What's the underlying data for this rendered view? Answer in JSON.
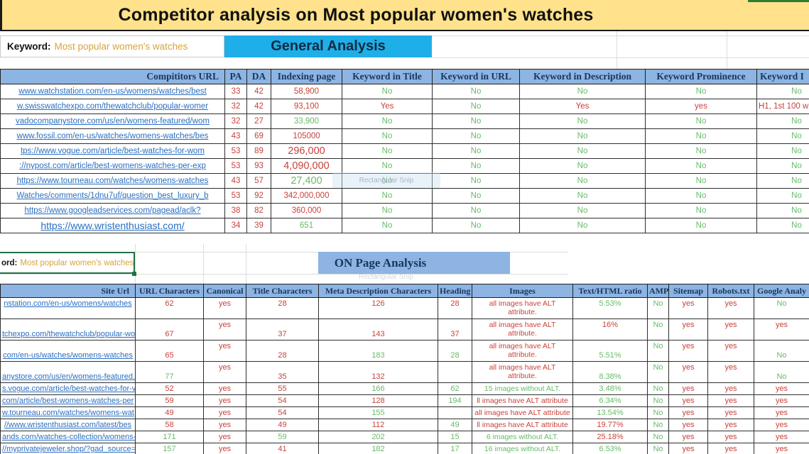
{
  "title": "Competitor analysis on Most popular women's watches",
  "keyword_row": {
    "label": "Keyword:",
    "value": "Most popular women's watches"
  },
  "keyword_row2": {
    "label": "ord:",
    "value": "Most popular women's watches"
  },
  "sections": {
    "general": "General Analysis",
    "onpage": "ON Page Analysis"
  },
  "watermark": "Rectangular Snip",
  "colors": {
    "title_bg": "#FFE28B",
    "header_bg": "#8DB4E2",
    "general_bg": "#1FAFE8",
    "red": "#c9423c",
    "green": "#67bb68",
    "link": "#2a6fc0",
    "selection_green": "#1F7244",
    "keyword_orange": "#d8a43c"
  },
  "general_table": {
    "headers": [
      "Compititors URL",
      "PA",
      "DA",
      "Indexing page",
      "Keyword in Title",
      "Keyword in URL",
      "Keyword in Description",
      "Keyword Prominence",
      "Keyword I"
    ],
    "rows": [
      [
        [
          "www.watchstation.com/en-us/womens/watches/best",
          "b"
        ],
        [
          "33",
          "r"
        ],
        [
          "42",
          "r"
        ],
        [
          "58,900",
          "r"
        ],
        [
          "No",
          "g"
        ],
        [
          "No",
          "g"
        ],
        [
          "No",
          "g"
        ],
        [
          "No",
          "g"
        ],
        [
          "No",
          "g"
        ]
      ],
      [
        [
          "w.swisswatchexpo.com/thewatchclub/popular-womer",
          "b"
        ],
        [
          "32",
          "r"
        ],
        [
          "42",
          "r"
        ],
        [
          "93,100",
          "r"
        ],
        [
          "Yes",
          "r"
        ],
        [
          "No",
          "g"
        ],
        [
          "Yes",
          "r"
        ],
        [
          "yes",
          "r"
        ],
        [
          "H1, 1st 100 w",
          "r"
        ]
      ],
      [
        [
          "vadocompanystore.com/us/en/womens-featured/wom",
          "b"
        ],
        [
          "32",
          "r"
        ],
        [
          "27",
          "r"
        ],
        [
          "33,900",
          "g"
        ],
        [
          "No",
          "g"
        ],
        [
          "No",
          "g"
        ],
        [
          "No",
          "g"
        ],
        [
          "No",
          "g"
        ],
        [
          "No",
          "g"
        ]
      ],
      [
        [
          "www.fossil.com/en-us/watches/womens-watches/bes",
          "b"
        ],
        [
          "43",
          "r"
        ],
        [
          "69",
          "r"
        ],
        [
          "105000",
          "r"
        ],
        [
          "No",
          "g"
        ],
        [
          "No",
          "g"
        ],
        [
          "No",
          "g"
        ],
        [
          "No",
          "g"
        ],
        [
          "No",
          "g"
        ]
      ],
      [
        [
          "tps://www.vogue.com/article/best-watches-for-wom",
          "b"
        ],
        [
          "53",
          "r"
        ],
        [
          "89",
          "r"
        ],
        [
          "296,000",
          "r"
        ],
        [
          "No",
          "g"
        ],
        [
          "No",
          "g"
        ],
        [
          "No",
          "g"
        ],
        [
          "No",
          "g"
        ],
        [
          "No",
          "g"
        ]
      ],
      [
        [
          "://nypost.com/article/best-womens-watches-per-exp",
          "b"
        ],
        [
          "53",
          "r"
        ],
        [
          "93",
          "r"
        ],
        [
          "4,090,000",
          "r"
        ],
        [
          "No",
          "g"
        ],
        [
          "No",
          "g"
        ],
        [
          "No",
          "g"
        ],
        [
          "No",
          "g"
        ],
        [
          "No",
          "g"
        ]
      ],
      [
        [
          "https://www.tourneau.com/watches/womens-watches",
          "b"
        ],
        [
          "43",
          "r"
        ],
        [
          "57",
          "r"
        ],
        [
          "27,400",
          "g"
        ],
        [
          "No",
          "g"
        ],
        [
          "No",
          "g"
        ],
        [
          "No",
          "g"
        ],
        [
          "No",
          "g"
        ],
        [
          "No",
          "g"
        ]
      ],
      [
        [
          "Watches/comments/1dnu7uf/question_best_luxury_b",
          "b"
        ],
        [
          "53",
          "r"
        ],
        [
          "92",
          "r"
        ],
        [
          "342,000,000",
          "r"
        ],
        [
          "No",
          "g"
        ],
        [
          "No",
          "g"
        ],
        [
          "No",
          "g"
        ],
        [
          "No",
          "g"
        ],
        [
          "No",
          "g"
        ]
      ],
      [
        [
          "https://www.googleadservices.com/pagead/aclk?",
          "b"
        ],
        [
          "38",
          "r"
        ],
        [
          "82",
          "r"
        ],
        [
          "360,000",
          "r"
        ],
        [
          "No",
          "g"
        ],
        [
          "No",
          "g"
        ],
        [
          "No",
          "g"
        ],
        [
          "No",
          "g"
        ],
        [
          "No",
          "g"
        ]
      ],
      [
        [
          "https://www.wristenthusiast.com/",
          "b"
        ],
        [
          "34",
          "r"
        ],
        [
          "39",
          "r"
        ],
        [
          "651",
          "g"
        ],
        [
          "No",
          "g"
        ],
        [
          "No",
          "g"
        ],
        [
          "No",
          "g"
        ],
        [
          "No",
          "g"
        ],
        [
          "No",
          "g"
        ]
      ]
    ]
  },
  "onpage_table": {
    "headers": [
      "Site Url",
      "URL Characters",
      "Canonical",
      "Title Characters",
      "Meta Description Characters",
      "Heading",
      "Images",
      "Text/HTML ratio",
      "AMP",
      "Sitemap",
      "Robots.txt",
      "Google Analy"
    ],
    "rows": [
      [
        [
          "nstation.com/en-us/womens/watches",
          "b"
        ],
        [
          "62",
          "r"
        ],
        [
          "yes",
          "r"
        ],
        [
          "28",
          "r"
        ],
        [
          "126",
          "r"
        ],
        [
          "28",
          "r"
        ],
        [
          "all images have ALT attribute.",
          "r"
        ],
        [
          "5.53%",
          "g"
        ],
        [
          "No",
          "g"
        ],
        [
          "yes",
          "r"
        ],
        [
          "yes",
          "r"
        ],
        [
          "No",
          "g"
        ]
      ],
      [
        [
          "tchexpo.com/thewatchclub/popular-wo",
          "b"
        ],
        [
          "67",
          "r"
        ],
        [
          "yes",
          "r"
        ],
        [
          "37",
          "r"
        ],
        [
          "143",
          "r"
        ],
        [
          "37",
          "r"
        ],
        [
          "all images have ALT attribute.",
          "r"
        ],
        [
          "16%",
          "r"
        ],
        [
          "No",
          "g"
        ],
        [
          "yes",
          "r"
        ],
        [
          "yes",
          "r"
        ],
        [
          "yes",
          "r"
        ]
      ],
      [
        [
          "com/en-us/watches/womens-watches",
          "b"
        ],
        [
          "65",
          "r"
        ],
        [
          "yes",
          "r"
        ],
        [
          "28",
          "r"
        ],
        [
          "183",
          "g"
        ],
        [
          "28",
          "g"
        ],
        [
          "all images have ALT attribute.",
          "r"
        ],
        [
          "5.51%",
          "g"
        ],
        [
          "No",
          "g"
        ],
        [
          "yes",
          "r"
        ],
        [
          "yes",
          "r"
        ],
        [
          "No",
          "g"
        ]
      ],
      [
        [
          "anystore.com/us/en/womens-featured.",
          "b"
        ],
        [
          "77",
          "g"
        ],
        [
          "yes",
          "r"
        ],
        [
          "35",
          "r"
        ],
        [
          "132",
          "r"
        ],
        [
          "",
          "d"
        ],
        [
          "all images have ALT attribute.",
          "r"
        ],
        [
          "8.38%",
          "g"
        ],
        [
          "No",
          "g"
        ],
        [
          "yes",
          "r"
        ],
        [
          "yes",
          "r"
        ],
        [
          "No",
          "g"
        ]
      ],
      [
        [
          "s.vogue.com/article/best-watches-for-v",
          "b"
        ],
        [
          "52",
          "r"
        ],
        [
          "yes",
          "r"
        ],
        [
          "55",
          "r"
        ],
        [
          "166",
          "g"
        ],
        [
          "62",
          "g"
        ],
        [
          "15 images without ALT.",
          "g"
        ],
        [
          "3.48%",
          "g"
        ],
        [
          "No",
          "g"
        ],
        [
          "yes",
          "r"
        ],
        [
          "yes",
          "r"
        ],
        [
          "yes",
          "r"
        ]
      ],
      [
        [
          "com/article/best-womens-watches-per",
          "b"
        ],
        [
          "59",
          "r"
        ],
        [
          "yes",
          "r"
        ],
        [
          "54",
          "r"
        ],
        [
          "128",
          "r"
        ],
        [
          "194",
          "g"
        ],
        [
          "ll images have ALT attribute",
          "r"
        ],
        [
          "6.34%",
          "g"
        ],
        [
          "No",
          "g"
        ],
        [
          "yes",
          "r"
        ],
        [
          "yes",
          "r"
        ],
        [
          "yes",
          "r"
        ]
      ],
      [
        [
          "w.tourneau.com/watches/womens-wat",
          "b"
        ],
        [
          "49",
          "r"
        ],
        [
          "yes",
          "r"
        ],
        [
          "54",
          "r"
        ],
        [
          "155",
          "g"
        ],
        [
          "",
          "d"
        ],
        [
          "all images have ALT attribute",
          "r"
        ],
        [
          "13.54%",
          "g"
        ],
        [
          "No",
          "g"
        ],
        [
          "yes",
          "r"
        ],
        [
          "yes",
          "r"
        ],
        [
          "yes",
          "r"
        ]
      ],
      [
        [
          "//www.wristenthusiast.com/latest/bes",
          "b"
        ],
        [
          "58",
          "r"
        ],
        [
          "yes",
          "r"
        ],
        [
          "49",
          "r"
        ],
        [
          "112",
          "r"
        ],
        [
          "49",
          "g"
        ],
        [
          "ll images have ALT attribute",
          "r"
        ],
        [
          "19.77%",
          "r"
        ],
        [
          "No",
          "g"
        ],
        [
          "yes",
          "r"
        ],
        [
          "yes",
          "r"
        ],
        [
          "yes",
          "r"
        ]
      ],
      [
        [
          "ands.com/watches-collection/womens-",
          "b"
        ],
        [
          "171",
          "g"
        ],
        [
          "yes",
          "r"
        ],
        [
          "59",
          "g"
        ],
        [
          "202",
          "g"
        ],
        [
          "15",
          "g"
        ],
        [
          "6 images without ALT.",
          "g"
        ],
        [
          "25.18%",
          "r"
        ],
        [
          "No",
          "g"
        ],
        [
          "yes",
          "r"
        ],
        [
          "yes",
          "r"
        ],
        [
          "yes",
          "r"
        ]
      ],
      [
        [
          "//myprivatejeweler.shop/?gad_source=",
          "b"
        ],
        [
          "157",
          "g"
        ],
        [
          "yes",
          "r"
        ],
        [
          "41",
          "r"
        ],
        [
          "182",
          "g"
        ],
        [
          "17",
          "g"
        ],
        [
          "16 images without ALT.",
          "g"
        ],
        [
          "6.53%",
          "g"
        ],
        [
          "No",
          "g"
        ],
        [
          "yes",
          "r"
        ],
        [
          "yes",
          "r"
        ],
        [
          "yes",
          "r"
        ]
      ]
    ]
  }
}
